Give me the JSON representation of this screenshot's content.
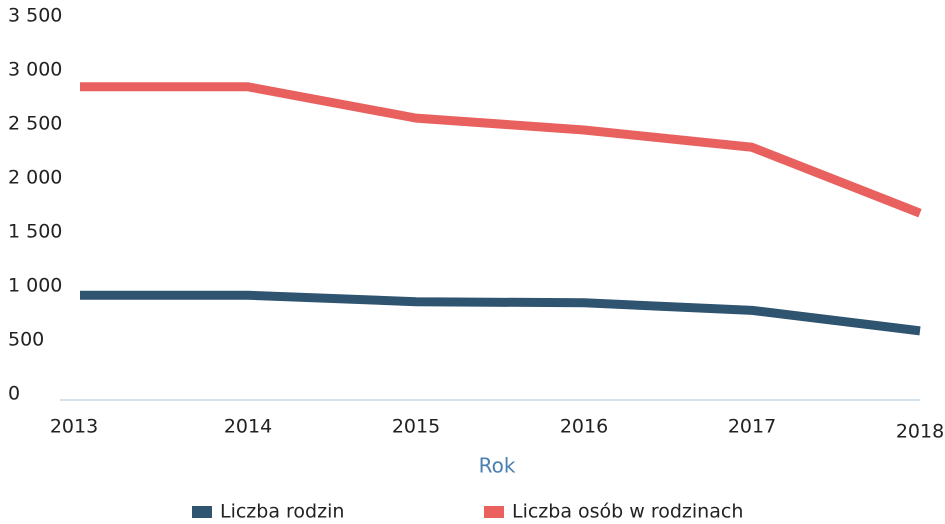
{
  "chart_data": {
    "type": "line",
    "x_label": "Rok",
    "categories": [
      "2013",
      "2014",
      "2015",
      "2016",
      "2017",
      "2018"
    ],
    "series": [
      {
        "name": "Liczba rodzin",
        "color": "#2f5470",
        "values": [
          970,
          970,
          910,
          900,
          830,
          640
        ]
      },
      {
        "name": "Liczba osób w rodzinach",
        "color": "#e8615f",
        "values": [
          2900,
          2900,
          2610,
          2500,
          2340,
          1730
        ]
      }
    ],
    "ylim": [
      0,
      3500
    ],
    "yticks": [
      0,
      500,
      {
        "value": 1000,
        "label": "1 000"
      },
      {
        "value": 1500,
        "label": "1 500"
      },
      {
        "value": 2000,
        "label": "2 000"
      },
      {
        "value": 2500,
        "label": "2 500"
      },
      {
        "value": 3000,
        "label": "3 000"
      },
      {
        "value": 3500,
        "label": "3 500"
      }
    ],
    "grid": false,
    "legend": "bottom"
  }
}
